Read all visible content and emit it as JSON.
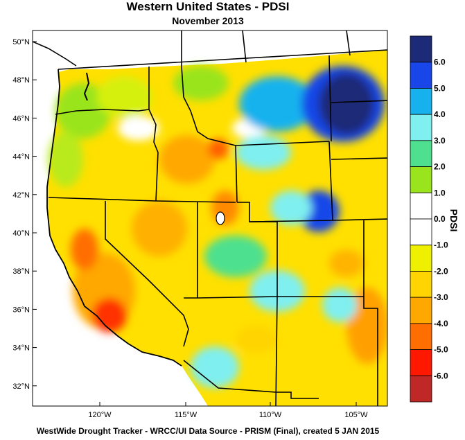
{
  "header": {
    "title": "Western United States - PDSI",
    "subtitle": "November 2013"
  },
  "footer": {
    "credit": "WestWide Drought Tracker - WRCC/UI  Data Source - PRISM (Final), created  5 JAN 2015"
  },
  "axes": {
    "lat_labels": [
      "50°N",
      "48°N",
      "46°N",
      "44°N",
      "42°N",
      "40°N",
      "38°N",
      "36°N",
      "34°N",
      "32°N"
    ],
    "lon_labels": [
      "120°W",
      "115°W",
      "110°W",
      "105°W"
    ]
  },
  "colorbar": {
    "title": "PDSI",
    "tick_labels": [
      "6.0",
      "5.0",
      "4.0",
      "3.0",
      "2.0",
      "1.0",
      "0.0",
      "-1.0",
      "-2.0",
      "-3.0",
      "-4.0",
      "-5.0",
      "-6.0"
    ],
    "colors": [
      "#1c2a78",
      "#1846e8",
      "#17b2ee",
      "#7fefef",
      "#4ee08e",
      "#9ae41e",
      "#ffffff",
      "#ffffff",
      "#eef000",
      "#ffd400",
      "#ffa800",
      "#ff6e00",
      "#ff1800",
      "#c02828"
    ]
  },
  "colors": {
    "wet_extreme": "#1c2a78",
    "very_wet": "#1846e8",
    "wet": "#17b2ee",
    "moist": "#7fefef",
    "near_normal_wet": "#4ee08e",
    "slightly_wet": "#9ae41e",
    "normal": "#ffffff",
    "slightly_dry": "#eef000",
    "dry": "#ffd400",
    "very_dry": "#ffa800",
    "severe_dry": "#ff6e00",
    "extreme_dry": "#ff1800"
  }
}
